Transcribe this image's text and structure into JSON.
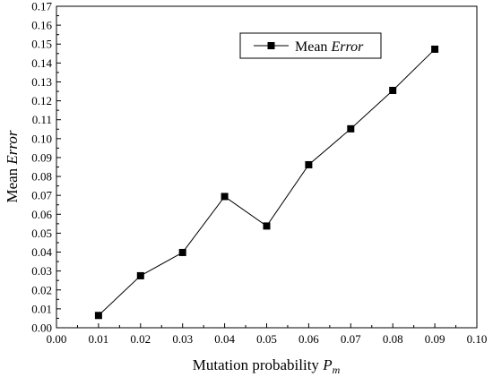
{
  "chart_data": {
    "type": "line",
    "xlabel": {
      "prefix": "Mutation probability ",
      "symbol": "P",
      "subscript": "m"
    },
    "ylabel": {
      "prefix": "Mean ",
      "italic": "Error"
    },
    "xlim": [
      0.0,
      0.1
    ],
    "ylim": [
      0.0,
      0.17
    ],
    "xticks": [
      "0.00",
      "0.01",
      "0.02",
      "0.03",
      "0.04",
      "0.05",
      "0.06",
      "0.07",
      "0.08",
      "0.09",
      "0.10"
    ],
    "yticks": [
      "0.00",
      "0.01",
      "0.02",
      "0.03",
      "0.04",
      "0.05",
      "0.06",
      "0.07",
      "0.08",
      "0.09",
      "0.10",
      "0.11",
      "0.12",
      "0.13",
      "0.14",
      "0.15",
      "0.16",
      "0.17"
    ],
    "grid": false,
    "legend_position": "top-right",
    "series": [
      {
        "name": "Mean Error",
        "name_parts": {
          "plain": "Mean ",
          "italic": "Error"
        },
        "marker": "square",
        "color": "#000000",
        "x": [
          0.01,
          0.02,
          0.03,
          0.04,
          0.05,
          0.06,
          0.07,
          0.08,
          0.09
        ],
        "y": [
          0.0065,
          0.0275,
          0.0398,
          0.0694,
          0.0538,
          0.0862,
          0.1052,
          0.1255,
          0.1473
        ]
      }
    ]
  }
}
